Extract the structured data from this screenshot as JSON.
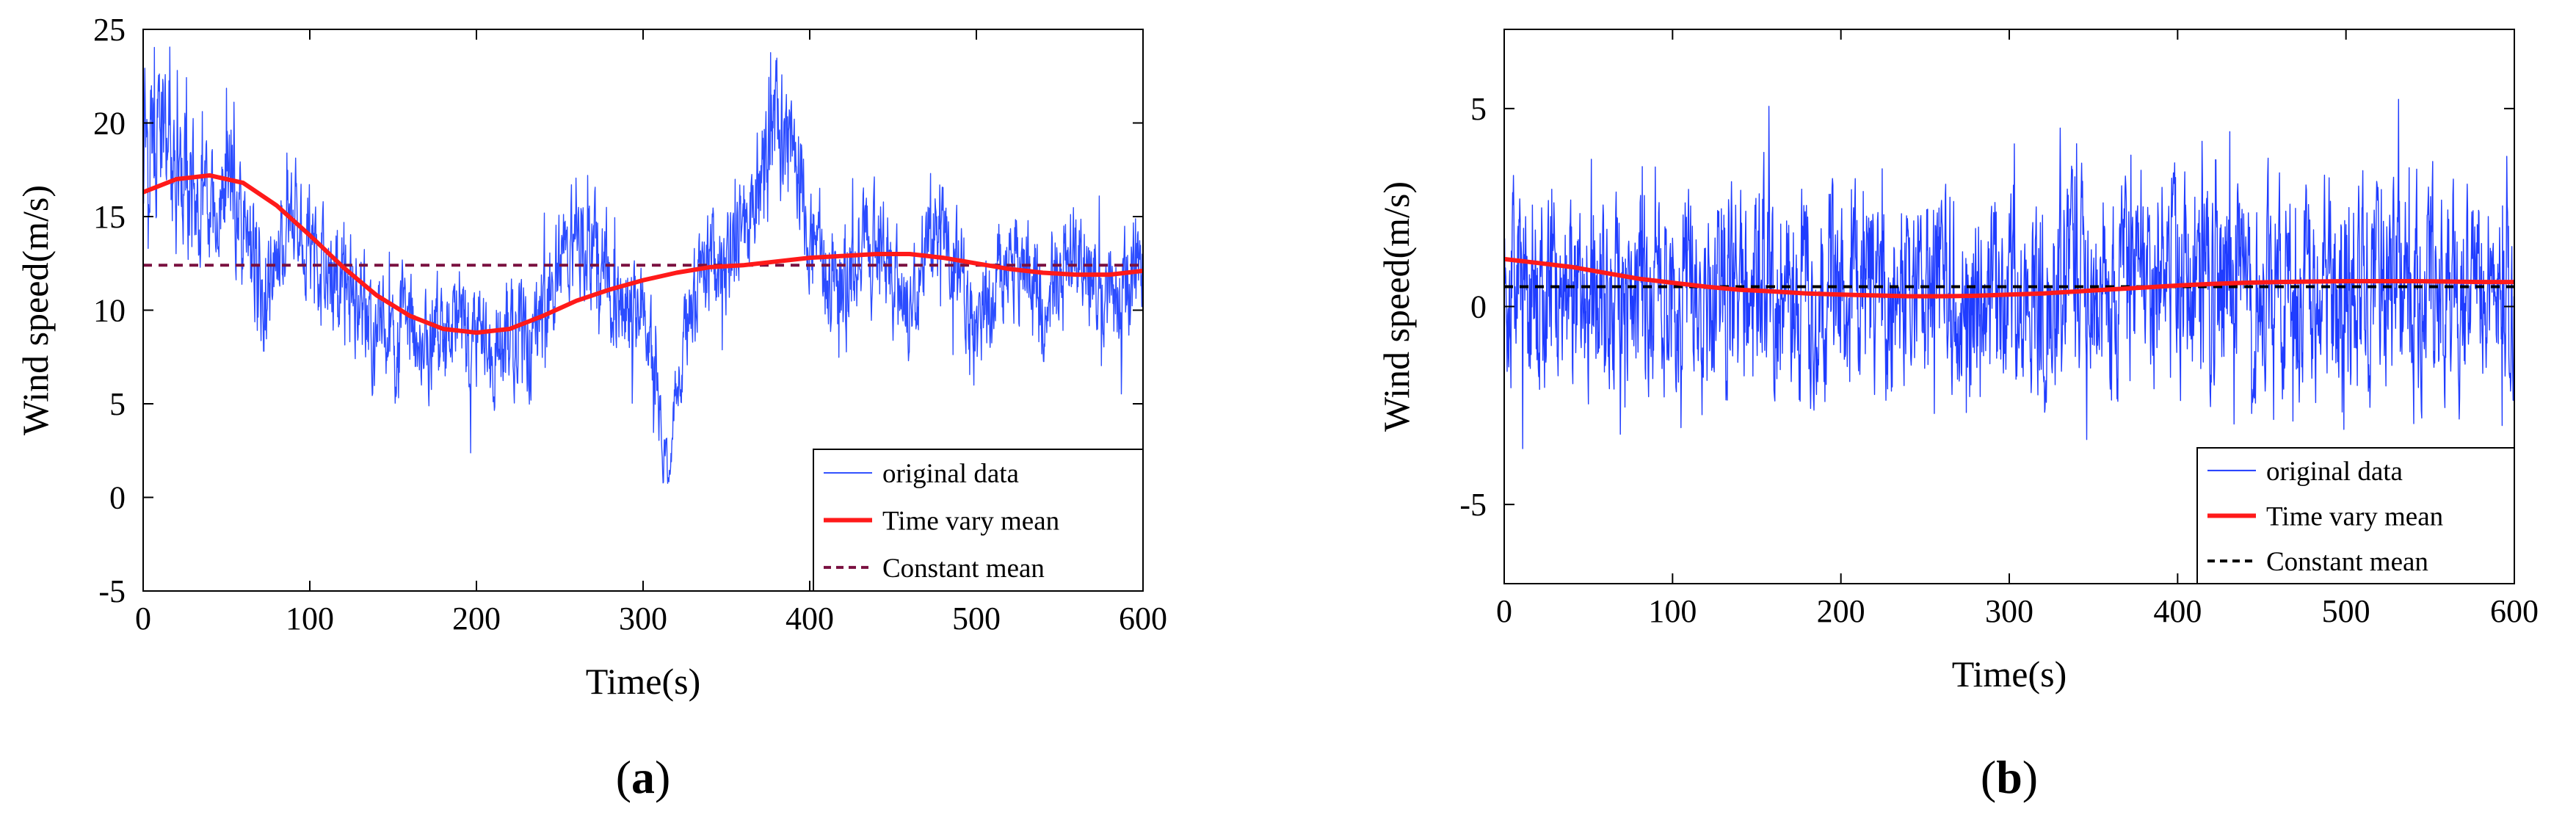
{
  "chart_data": [
    {
      "type": "line",
      "panel_label": "a",
      "xlabel": "Time(s)",
      "ylabel": "Wind speed(m/s)",
      "xlim": [
        0,
        600
      ],
      "ylim": [
        -5,
        25
      ],
      "xticks": [
        0,
        100,
        200,
        300,
        400,
        500,
        600
      ],
      "yticks": [
        -5,
        0,
        5,
        10,
        15,
        20,
        25
      ],
      "grid": false,
      "legend_position": "bottom-right",
      "series": [
        {
          "name": "original data",
          "style": "thin-line",
          "color": "#2b4cff",
          "x": [
            0,
            10,
            20,
            30,
            40,
            50,
            60,
            70,
            80,
            90,
            100,
            110,
            120,
            130,
            140,
            150,
            160,
            170,
            180,
            190,
            200,
            210,
            220,
            230,
            240,
            250,
            260,
            270,
            280,
            290,
            300,
            310,
            315,
            320,
            330,
            340,
            350,
            360,
            370,
            380,
            390,
            400,
            410,
            420,
            430,
            440,
            450,
            460,
            470,
            480,
            490,
            500,
            510,
            520,
            530,
            540,
            550,
            560,
            570,
            580,
            590,
            600
          ],
          "values": [
            21,
            19,
            17,
            16,
            15,
            17,
            14,
            11,
            13,
            15,
            14,
            11,
            12,
            10,
            9,
            8,
            9,
            8,
            9,
            8,
            9,
            8,
            9,
            8,
            10,
            12,
            14,
            13,
            12,
            10,
            11,
            4,
            1,
            6,
            11,
            13,
            12,
            14,
            17,
            20,
            19,
            15,
            12,
            11,
            13,
            14,
            12,
            10,
            13,
            14,
            12,
            9,
            11,
            13,
            12,
            10,
            12,
            13,
            12,
            10,
            11,
            12
          ],
          "band": [
            7,
            7,
            6,
            6,
            5,
            6,
            6,
            6,
            5,
            5,
            5,
            5,
            5,
            5,
            5,
            5,
            5,
            5,
            5,
            5,
            5,
            5,
            5,
            5,
            5,
            5,
            5,
            5,
            5,
            5,
            5,
            3,
            2,
            3,
            5,
            5,
            5,
            5,
            6,
            6,
            6,
            5,
            5,
            5,
            5,
            5,
            5,
            5,
            5,
            5,
            5,
            5,
            5,
            5,
            5,
            5,
            5,
            5,
            5,
            5,
            5,
            5
          ]
        },
        {
          "name": "Time vary mean",
          "style": "thick-line",
          "color": "#ff1a1a",
          "x": [
            0,
            20,
            40,
            60,
            80,
            100,
            120,
            140,
            160,
            180,
            200,
            220,
            240,
            260,
            280,
            300,
            320,
            340,
            360,
            380,
            400,
            420,
            440,
            460,
            480,
            500,
            520,
            540,
            560,
            580,
            600
          ],
          "values": [
            16.3,
            17.0,
            17.2,
            16.8,
            15.6,
            14.0,
            12.3,
            10.8,
            9.7,
            9.0,
            8.8,
            9.0,
            9.7,
            10.5,
            11.1,
            11.6,
            12.0,
            12.3,
            12.4,
            12.6,
            12.8,
            12.9,
            13.0,
            13.0,
            12.8,
            12.5,
            12.2,
            12.0,
            11.9,
            11.9,
            12.1
          ]
        },
        {
          "name": "Constant mean",
          "style": "dashed-line",
          "color": "#7a1040",
          "x": [
            0,
            600
          ],
          "values": [
            12.4,
            12.4
          ]
        }
      ]
    },
    {
      "type": "line",
      "panel_label": "b",
      "xlabel": "Time(s)",
      "ylabel": "Wind speed(m/s)",
      "xlim": [
        0,
        600
      ],
      "ylim": [
        -7,
        7
      ],
      "xticks": [
        0,
        100,
        200,
        300,
        400,
        500,
        600
      ],
      "yticks": [
        -5,
        0,
        5
      ],
      "grid": false,
      "legend_position": "bottom-right",
      "series": [
        {
          "name": "original data",
          "style": "thin-line",
          "color": "#1f3cff",
          "x": [
            0,
            20,
            40,
            60,
            80,
            100,
            120,
            140,
            160,
            180,
            200,
            220,
            240,
            260,
            280,
            300,
            320,
            340,
            360,
            380,
            400,
            420,
            440,
            460,
            480,
            500,
            520,
            540,
            560,
            580,
            600
          ],
          "values": [
            0.5,
            0.4,
            0.3,
            0.2,
            0.4,
            0.5,
            0.3,
            0.5,
            0.6,
            0.4,
            0.3,
            0.4,
            0.5,
            0.3,
            0.2,
            0.4,
            0.5,
            0.3,
            0.4,
            0.6,
            0.5,
            0.4,
            0.6,
            0.5,
            0.3,
            0.4,
            0.6,
            0.5,
            0.4,
            0.5,
            0.6
          ],
          "band": [
            4.0,
            4.2,
            4.0,
            4.4,
            4.2,
            4.0,
            4.1,
            4.3,
            4.5,
            4.4,
            4.2,
            4.3,
            4.0,
            4.1,
            4.2,
            4.0,
            4.3,
            4.4,
            4.1,
            4.2,
            4.6,
            4.5,
            4.3,
            4.2,
            4.1,
            4.4,
            4.3,
            4.2,
            4.4,
            4.1,
            4.2
          ]
        },
        {
          "name": "Time vary mean",
          "style": "thick-line",
          "color": "#ff1a1a",
          "x": [
            0,
            20,
            40,
            60,
            80,
            100,
            120,
            140,
            160,
            180,
            200,
            220,
            240,
            260,
            280,
            300,
            320,
            340,
            360,
            380,
            400,
            420,
            440,
            460,
            480,
            500,
            520,
            540,
            560,
            580,
            600
          ],
          "values": [
            1.2,
            1.1,
            1.0,
            0.85,
            0.7,
            0.6,
            0.5,
            0.42,
            0.38,
            0.33,
            0.3,
            0.28,
            0.26,
            0.26,
            0.27,
            0.3,
            0.33,
            0.38,
            0.43,
            0.48,
            0.53,
            0.57,
            0.6,
            0.62,
            0.63,
            0.64,
            0.64,
            0.64,
            0.63,
            0.62,
            0.62
          ]
        },
        {
          "name": "Constant mean",
          "style": "dashed-line",
          "color": "#000000",
          "x": [
            0,
            600
          ],
          "values": [
            0.5,
            0.5
          ]
        }
      ]
    }
  ]
}
